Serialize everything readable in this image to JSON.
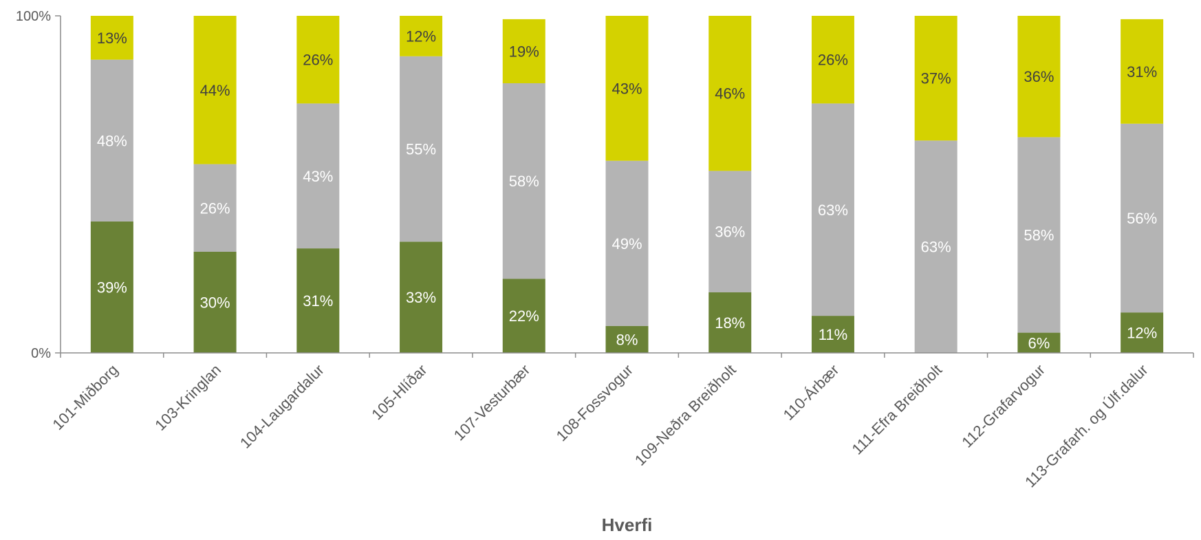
{
  "chart_data": {
    "type": "bar",
    "stacked": true,
    "percent_stacked": true,
    "xlabel": "Hverfi",
    "ylabel": "",
    "ylim": [
      0,
      100
    ],
    "yticks": [
      "0%",
      "100%"
    ],
    "grid": false,
    "legend": "none",
    "categories": [
      "101-Miðborg",
      "103-Kringlan",
      "104-Laugardalur",
      "105-Hlíðar",
      "107-Vesturbær",
      "108-Fossvogur",
      "109-Neðra Breiðholt",
      "110-Árbær",
      "111-Efra Breiðholt",
      "112-Grafarvogur",
      "113-Grafarh. og Úlf.dalur"
    ],
    "series": [
      {
        "color": "#6a8236",
        "label_color": "#ffffff",
        "values": [
          39,
          30,
          31,
          33,
          22,
          8,
          18,
          11,
          0,
          6,
          12
        ]
      },
      {
        "color": "#b4b4b4",
        "label_color": "#ffffff",
        "values": [
          48,
          26,
          43,
          55,
          58,
          49,
          36,
          63,
          63,
          58,
          56
        ]
      },
      {
        "color": "#d4d200",
        "label_color": "#404040",
        "values": [
          13,
          44,
          26,
          12,
          19,
          43,
          46,
          26,
          37,
          36,
          31
        ]
      }
    ]
  }
}
